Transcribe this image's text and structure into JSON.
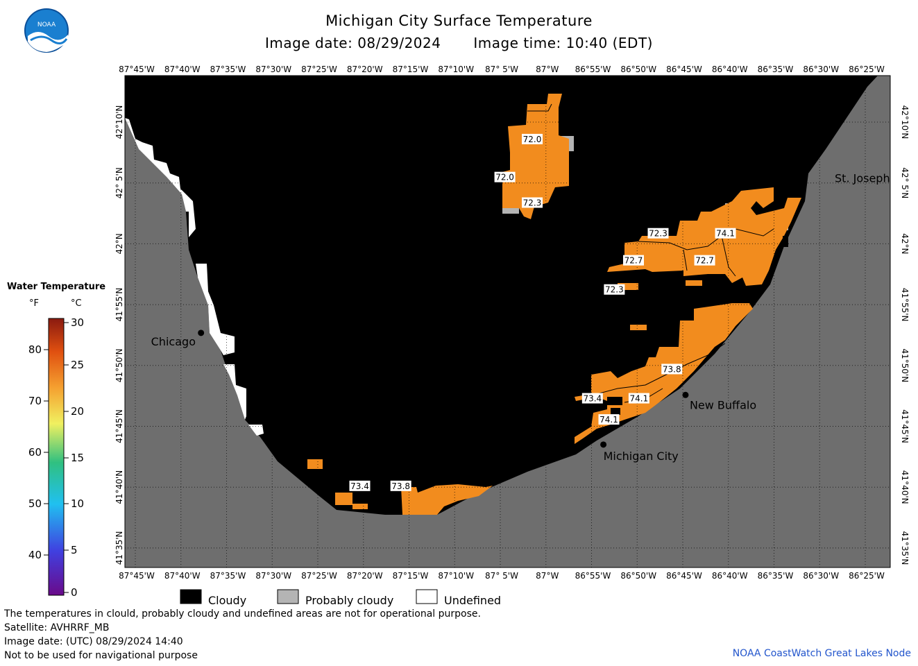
{
  "title": "Michigan City Surface Temperature",
  "image_date_label": "Image date: 08/29/2024",
  "image_time_label": "Image time: 10:40 (EDT)",
  "longitude_labels": [
    "87°45'W",
    "87°40'W",
    "87°35'W",
    "87°30'W",
    "87°25'W",
    "87°20'W",
    "87°15'W",
    "87°10'W",
    "87° 5'W",
    "87°W",
    "86°55'W",
    "86°50'W",
    "86°45'W",
    "86°40'W",
    "86°35'W",
    "86°30'W",
    "86°25'W"
  ],
  "latitude_labels": [
    "42°10'N",
    "42° 5'N",
    "42°N",
    "41°55'N",
    "41°50'N",
    "41°45'N",
    "41°40'N",
    "41°35'N"
  ],
  "cities": [
    {
      "name": "Chicago",
      "lon": -87.63,
      "lat": 41.878
    },
    {
      "name": "St. Joseph",
      "lon": -86.48,
      "lat": 42.09
    },
    {
      "name": "New Buffalo",
      "lon": -86.745,
      "lat": 41.793
    },
    {
      "name": "Michigan City",
      "lon": -86.895,
      "lat": 41.725
    }
  ],
  "temperature_labels": [
    {
      "value": "72.0",
      "lon": -87.025,
      "lat": 42.143
    },
    {
      "value": "72.0",
      "lon": -87.075,
      "lat": 42.091
    },
    {
      "value": "72.3",
      "lon": -87.025,
      "lat": 42.056
    },
    {
      "value": "72.3",
      "lon": -86.795,
      "lat": 42.014
    },
    {
      "value": "74.1",
      "lon": -86.672,
      "lat": 42.014
    },
    {
      "value": "72.7",
      "lon": -86.84,
      "lat": 41.977
    },
    {
      "value": "72.7",
      "lon": -86.71,
      "lat": 41.977
    },
    {
      "value": "72.3",
      "lon": -86.875,
      "lat": 41.937
    },
    {
      "value": "73.8",
      "lon": -86.77,
      "lat": 41.828
    },
    {
      "value": "73.4",
      "lon": -86.915,
      "lat": 41.788
    },
    {
      "value": "74.1",
      "lon": -86.83,
      "lat": 41.788
    },
    {
      "value": "74.1",
      "lon": -86.885,
      "lat": 41.759
    },
    {
      "value": "73.4",
      "lon": -87.34,
      "lat": 41.668
    },
    {
      "value": "73.8",
      "lon": -87.265,
      "lat": 41.668
    }
  ],
  "legend": {
    "title": "Water Temperature",
    "unit_f": "°F",
    "unit_c": "°C",
    "f_ticks": [
      "80",
      "70",
      "60",
      "50",
      "40"
    ],
    "c_ticks": [
      "30",
      "25",
      "20",
      "15",
      "10",
      "5",
      "0"
    ]
  },
  "classes": {
    "cloudy": "Cloudy",
    "probably_cloudy": "Probably cloudy",
    "undefined": "Undefined"
  },
  "footer_lines": [
    "The temperatures in clould, probably cloudy and undefined areas are not for operational purpose.",
    "Satellite: AVHRRF_MB",
    "Image date: (UTC) 08/29/2024  14:40",
    "Not to be used for navigational purpose"
  ],
  "credit": "NOAA CoastWatch Great Lakes Node",
  "logo_text": "NOAA",
  "colors": {
    "land": "#6e6e6e",
    "cloud": "#000000",
    "probably_cloudy": "#b4b4b4",
    "undefined": "#ffffff",
    "warm": "#f28c1e",
    "noaa_blue": "#1a7fd0"
  }
}
